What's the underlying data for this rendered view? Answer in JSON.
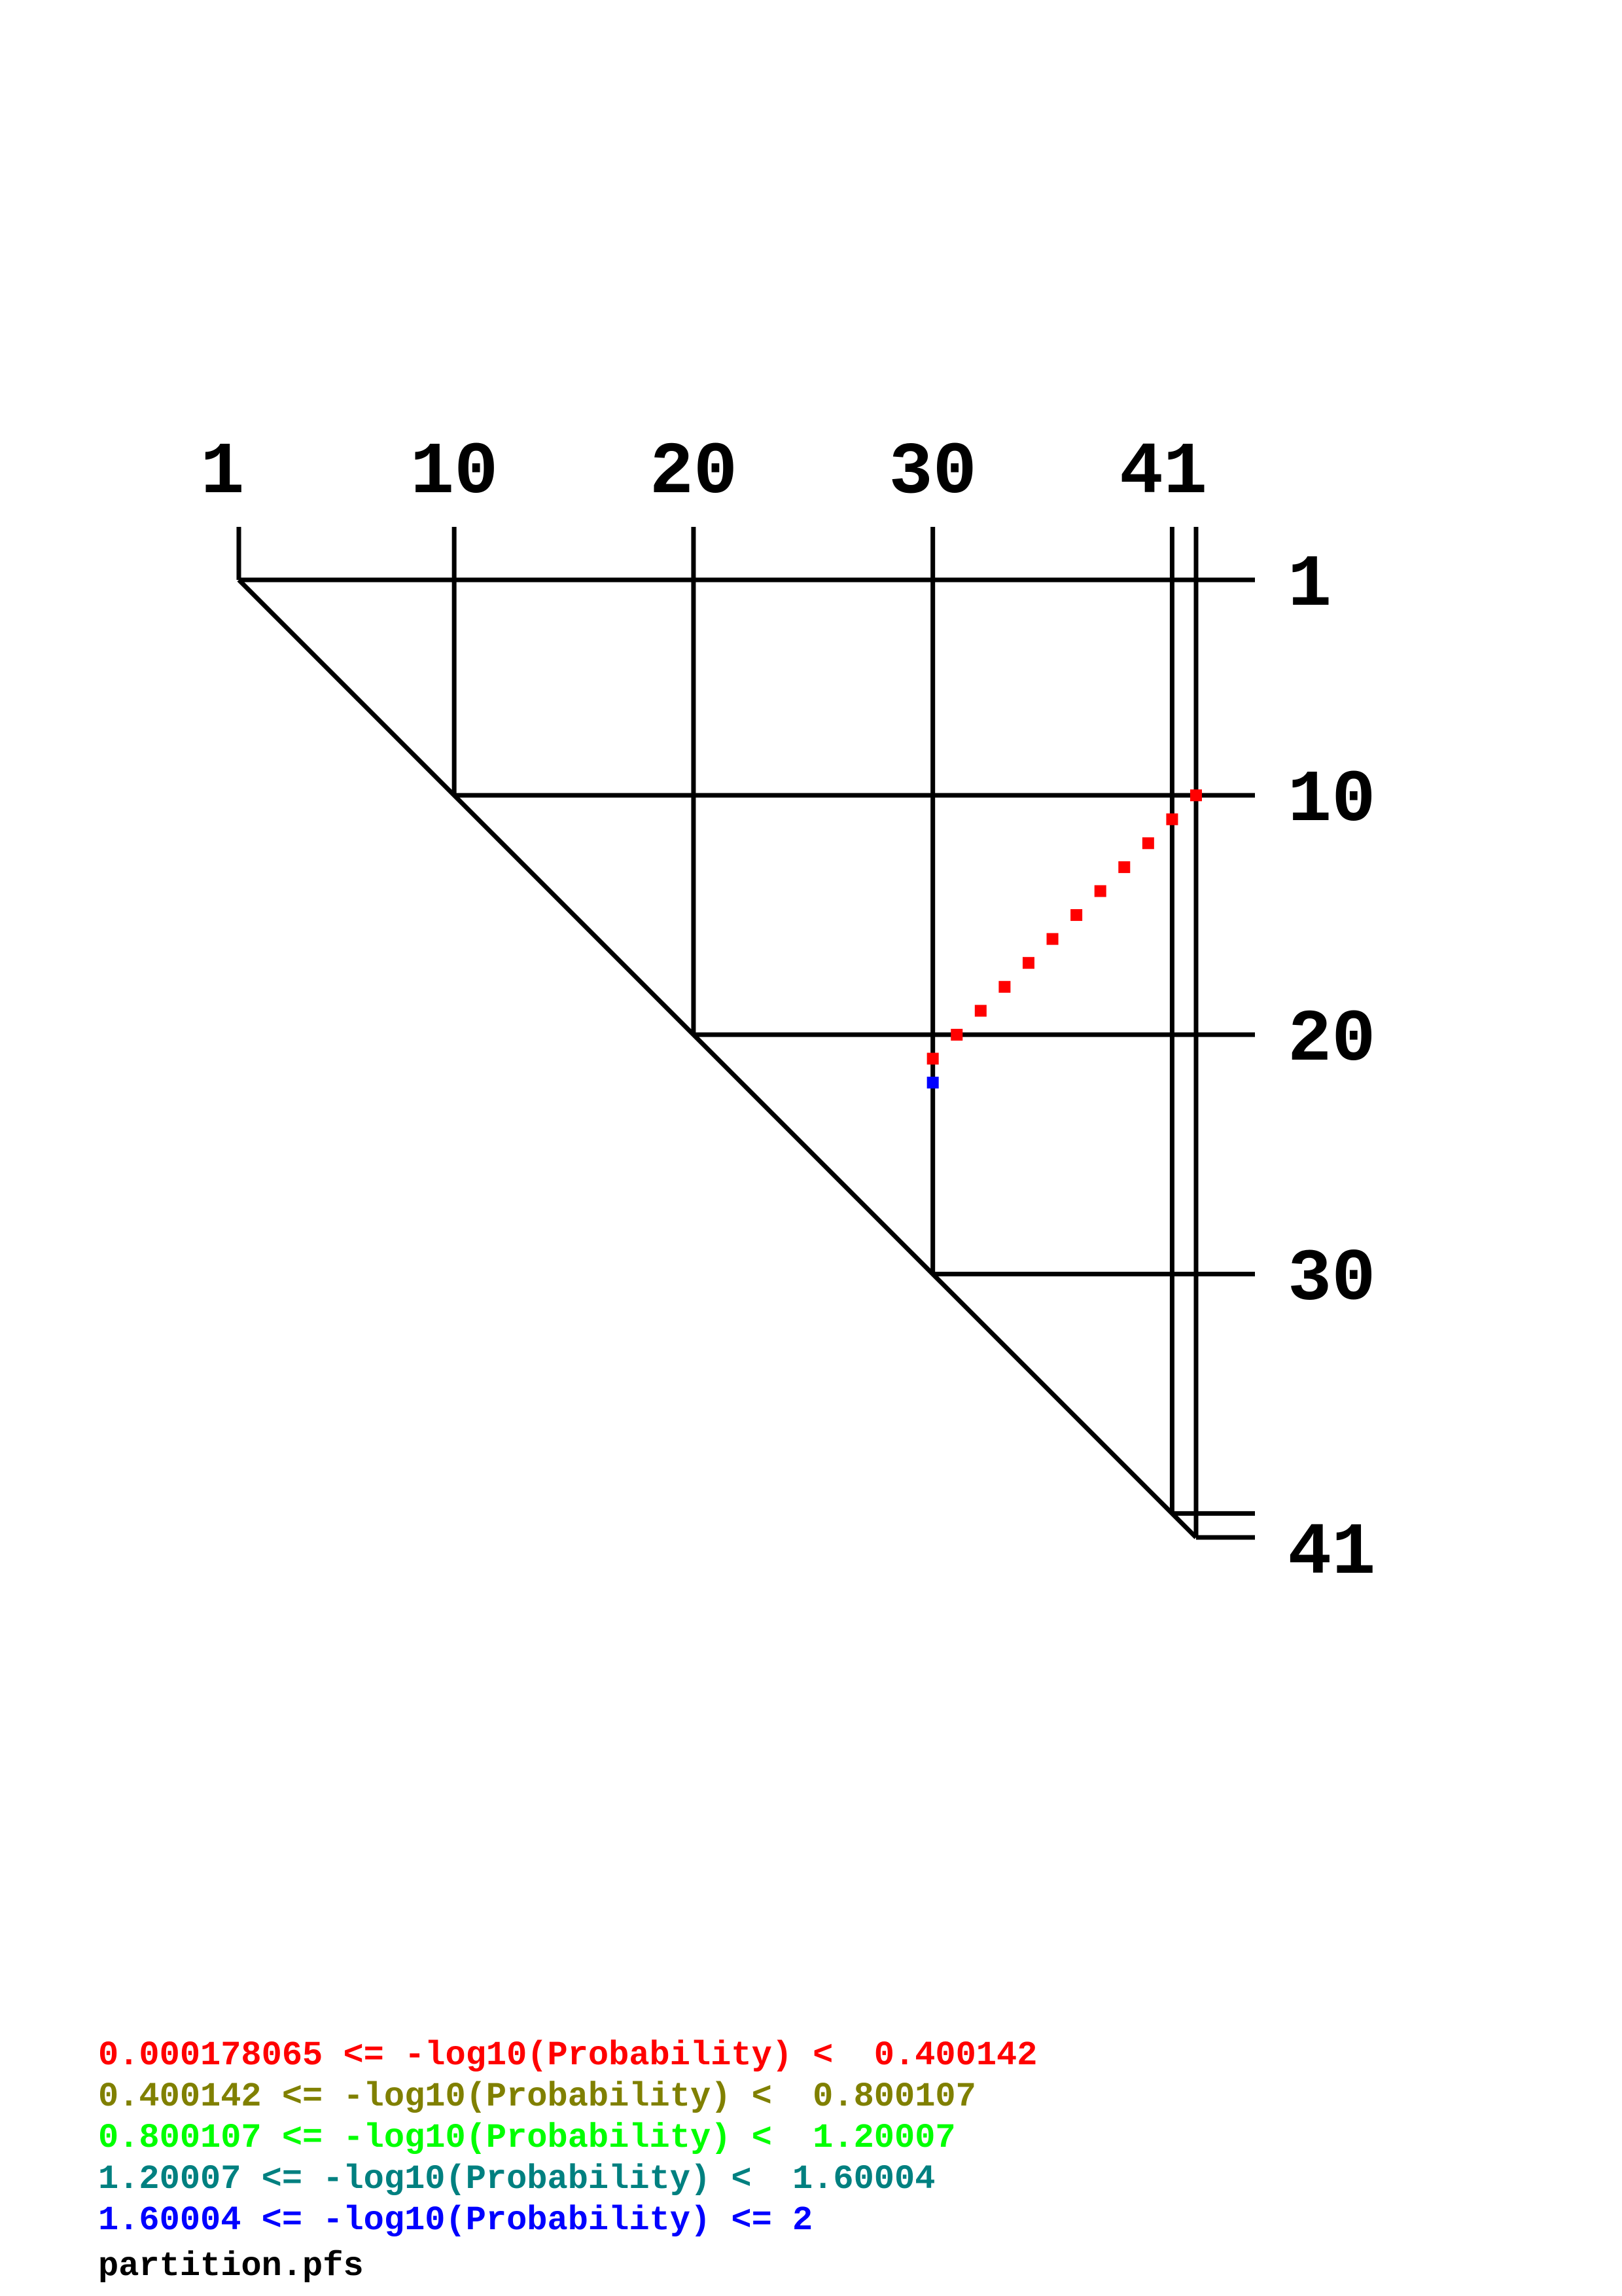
{
  "chart_data": {
    "type": "scatter",
    "description_of_axes": "",
    "sequence_length": 41,
    "top_tick_labels": [
      "1",
      "10",
      "20",
      "30",
      "41"
    ],
    "top_tick_positions": [
      1,
      10,
      20,
      30,
      41
    ],
    "right_tick_labels": [
      "1",
      "10",
      "20",
      "30",
      "41"
    ],
    "right_tick_positions": [
      1,
      10,
      20,
      30,
      41
    ],
    "grid_positions": [
      1,
      10,
      20,
      30,
      40,
      41
    ],
    "points": [
      {
        "i": 10,
        "j": 41,
        "bin": 0
      },
      {
        "i": 11,
        "j": 40,
        "bin": 0
      },
      {
        "i": 12,
        "j": 39,
        "bin": 0
      },
      {
        "i": 13,
        "j": 38,
        "bin": 0
      },
      {
        "i": 14,
        "j": 37,
        "bin": 0
      },
      {
        "i": 15,
        "j": 36,
        "bin": 0
      },
      {
        "i": 16,
        "j": 35,
        "bin": 0
      },
      {
        "i": 17,
        "j": 34,
        "bin": 0
      },
      {
        "i": 18,
        "j": 33,
        "bin": 0
      },
      {
        "i": 19,
        "j": 32,
        "bin": 0
      },
      {
        "i": 20,
        "j": 31,
        "bin": 0
      },
      {
        "i": 21,
        "j": 30,
        "bin": 0
      },
      {
        "i": 22,
        "j": 30,
        "bin": 4
      }
    ],
    "legend": [
      {
        "text": "0.000178065 <= -log10(Probability) <  0.400142",
        "color": "#ff0000"
      },
      {
        "text": "0.400142 <= -log10(Probability) <  0.800107",
        "color": "#808000"
      },
      {
        "text": "0.800107 <= -log10(Probability) <  1.20007",
        "color": "#00ff00"
      },
      {
        "text": "1.20007 <= -log10(Probability) <  1.60004",
        "color": "#008080"
      },
      {
        "text": "1.60004 <= -log10(Probability) <= 2",
        "color": "#0000ff"
      }
    ],
    "filename": "partition.pfs"
  }
}
